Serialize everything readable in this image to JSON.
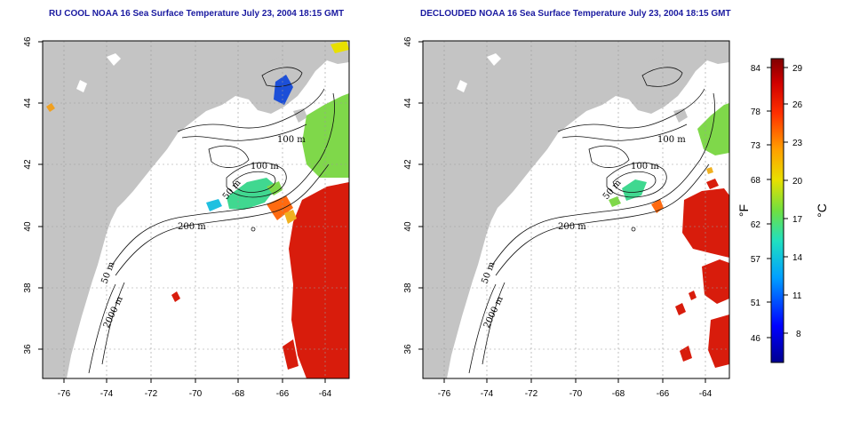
{
  "titles": {
    "left": "RU COOL NOAA 16 Sea Surface Temperature July 23, 2004 18:15 GMT",
    "right": "DECLOUDED NOAA 16 Sea Surface Temperature July 23, 2004 18:15 GMT"
  },
  "axes": {
    "x_ticks": [
      "-76",
      "-74",
      "-72",
      "-70",
      "-68",
      "-66",
      "-64"
    ],
    "y_ticks": [
      "46",
      "44",
      "42",
      "40",
      "38",
      "36"
    ]
  },
  "contour_labels": {
    "m100_a": "100 m",
    "m100_b": "100 m",
    "m50_a": "50 m",
    "m200": "200 m",
    "m50_b": "50 m",
    "m2000": "2000 m"
  },
  "colorbar": {
    "fahrenheit_ticks": [
      "84",
      "78",
      "73",
      "68",
      "62",
      "57",
      "51",
      "46"
    ],
    "celsius_ticks": [
      "29",
      "26",
      "23",
      "20",
      "17",
      "14",
      "11",
      "8"
    ],
    "fahrenheit_unit": "°F",
    "celsius_unit": "°C"
  },
  "colors": {
    "land": "#c4c4c4",
    "ocean": "#ffffff",
    "title": "#1a1aa0",
    "warm": "#d81c0c",
    "green": "#7fd84a",
    "cool_blue": "#1c4fd8"
  }
}
